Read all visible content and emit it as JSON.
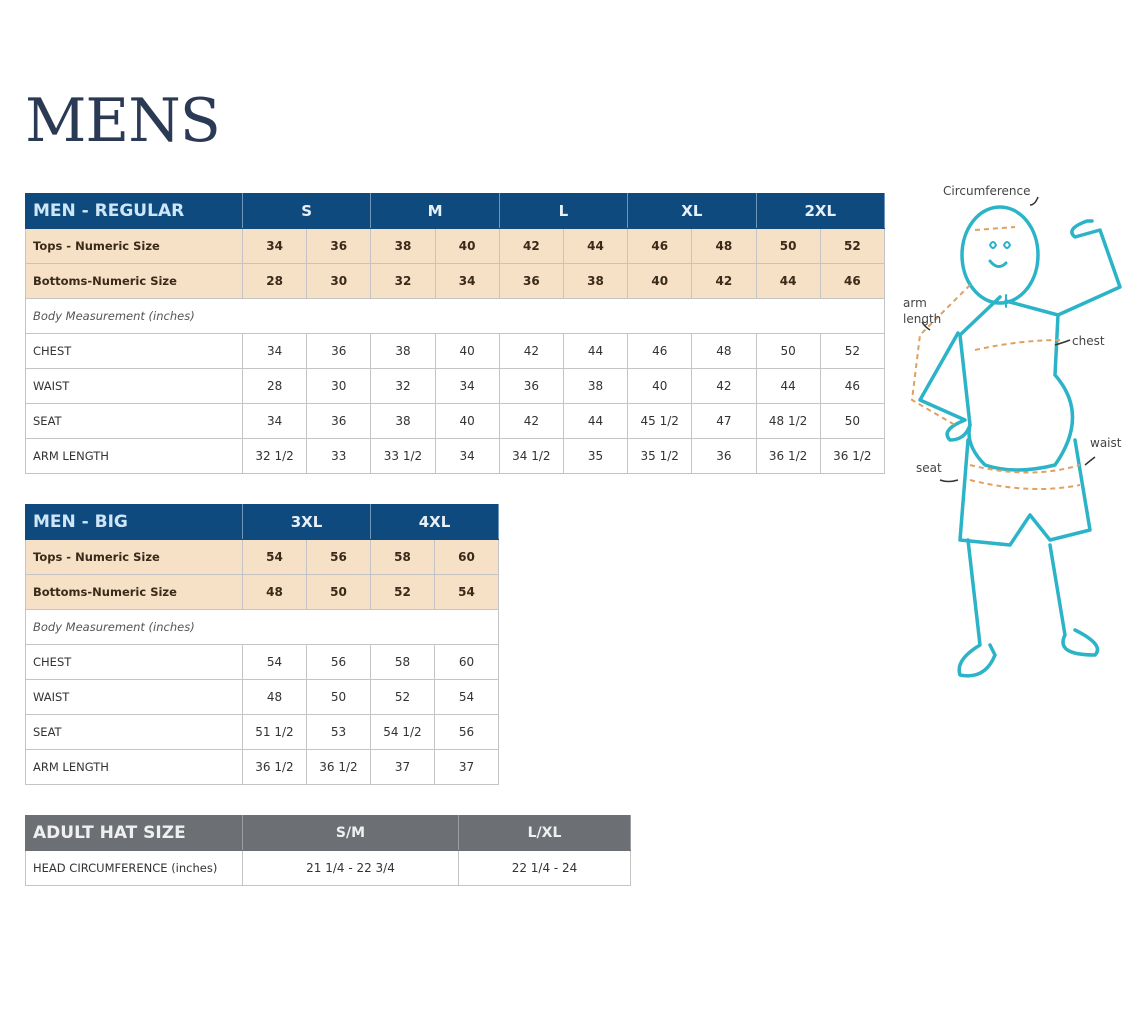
{
  "title": "MENS",
  "regular": {
    "name": "MEN - REGULAR",
    "sizes": [
      "S",
      "M",
      "L",
      "XL",
      "2XL"
    ],
    "tops": {
      "label": "Tops - Numeric Size",
      "values": [
        "34",
        "36",
        "38",
        "40",
        "42",
        "44",
        "46",
        "48",
        "50",
        "52"
      ]
    },
    "bottoms": {
      "label": "Bottoms-Numeric Size",
      "values": [
        "28",
        "30",
        "32",
        "34",
        "36",
        "38",
        "40",
        "42",
        "44",
        "46"
      ]
    },
    "note": "Body Measurement (inches)",
    "rows": [
      {
        "label": "CHEST",
        "values": [
          "34",
          "36",
          "38",
          "40",
          "42",
          "44",
          "46",
          "48",
          "50",
          "52"
        ]
      },
      {
        "label": "WAIST",
        "values": [
          "28",
          "30",
          "32",
          "34",
          "36",
          "38",
          "40",
          "42",
          "44",
          "46"
        ]
      },
      {
        "label": "SEAT",
        "values": [
          "34",
          "36",
          "38",
          "40",
          "42",
          "44",
          "45 1/2",
          "47",
          "48 1/2",
          "50"
        ]
      },
      {
        "label": "ARM LENGTH",
        "values": [
          "32 1/2",
          "33",
          "33 1/2",
          "34",
          "34 1/2",
          "35",
          "35 1/2",
          "36",
          "36 1/2",
          "36 1/2"
        ]
      }
    ]
  },
  "big": {
    "name": "MEN - BIG",
    "sizes": [
      "3XL",
      "4XL"
    ],
    "tops": {
      "label": "Tops - Numeric Size",
      "values": [
        "54",
        "56",
        "58",
        "60"
      ]
    },
    "bottoms": {
      "label": "Bottoms-Numeric Size",
      "values": [
        "48",
        "50",
        "52",
        "54"
      ]
    },
    "note": "Body Measurement (inches)",
    "rows": [
      {
        "label": "CHEST",
        "values": [
          "54",
          "56",
          "58",
          "60"
        ]
      },
      {
        "label": "WAIST",
        "values": [
          "48",
          "50",
          "52",
          "54"
        ]
      },
      {
        "label": "SEAT",
        "values": [
          "51 1/2",
          "53",
          "54 1/2",
          "56"
        ]
      },
      {
        "label": "ARM LENGTH",
        "values": [
          "36 1/2",
          "36 1/2",
          "37",
          "37"
        ]
      }
    ]
  },
  "hat": {
    "name": "ADULT HAT SIZE",
    "sizes": [
      "S/M",
      "L/XL"
    ],
    "row": {
      "label": "HEAD CIRCUMFERENCE (inches)",
      "values": [
        "21 1/4 - 22 3/4",
        "22 1/4 - 24"
      ]
    }
  },
  "figure": {
    "labels": {
      "circumference": "Circumference",
      "arm_length_1": "arm",
      "arm_length_2": "length",
      "chest": "chest",
      "waist": "waist",
      "seat": "seat"
    },
    "colors": {
      "outline": "#2bb3c8",
      "measure": "#e0a060"
    }
  }
}
